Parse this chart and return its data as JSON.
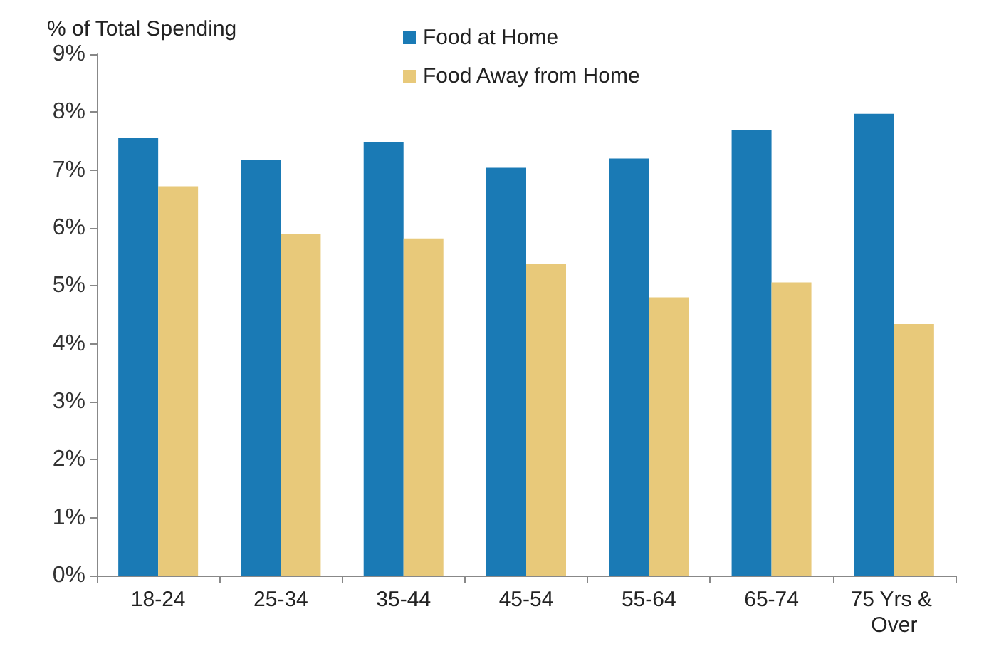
{
  "chart_data": {
    "type": "bar",
    "ylabel": "% of Total Spending",
    "categories": [
      "18-24",
      "25-34",
      "35-44",
      "45-54",
      "55-64",
      "65-74",
      "75 Yrs & Over"
    ],
    "series": [
      {
        "name": "Food at Home",
        "color": "#1a7ab5",
        "values": [
          7.55,
          7.18,
          7.48,
          7.04,
          7.2,
          7.69,
          7.97
        ]
      },
      {
        "name": "Food Away from Home",
        "color": "#e8c97a",
        "values": [
          6.72,
          5.89,
          5.82,
          5.38,
          4.8,
          5.06,
          4.34
        ]
      }
    ],
    "ylim": [
      0,
      9
    ],
    "yticks": [
      {
        "value": 0,
        "label": "0%"
      },
      {
        "value": 1,
        "label": "1%"
      },
      {
        "value": 2,
        "label": "2%"
      },
      {
        "value": 3,
        "label": "3%"
      },
      {
        "value": 4,
        "label": "4%"
      },
      {
        "value": 5,
        "label": "5%"
      },
      {
        "value": 6,
        "label": "6%"
      },
      {
        "value": 7,
        "label": "7%"
      },
      {
        "value": 8,
        "label": "8%"
      },
      {
        "value": 9,
        "label": "9%"
      }
    ],
    "grid": false,
    "legend": "top"
  }
}
